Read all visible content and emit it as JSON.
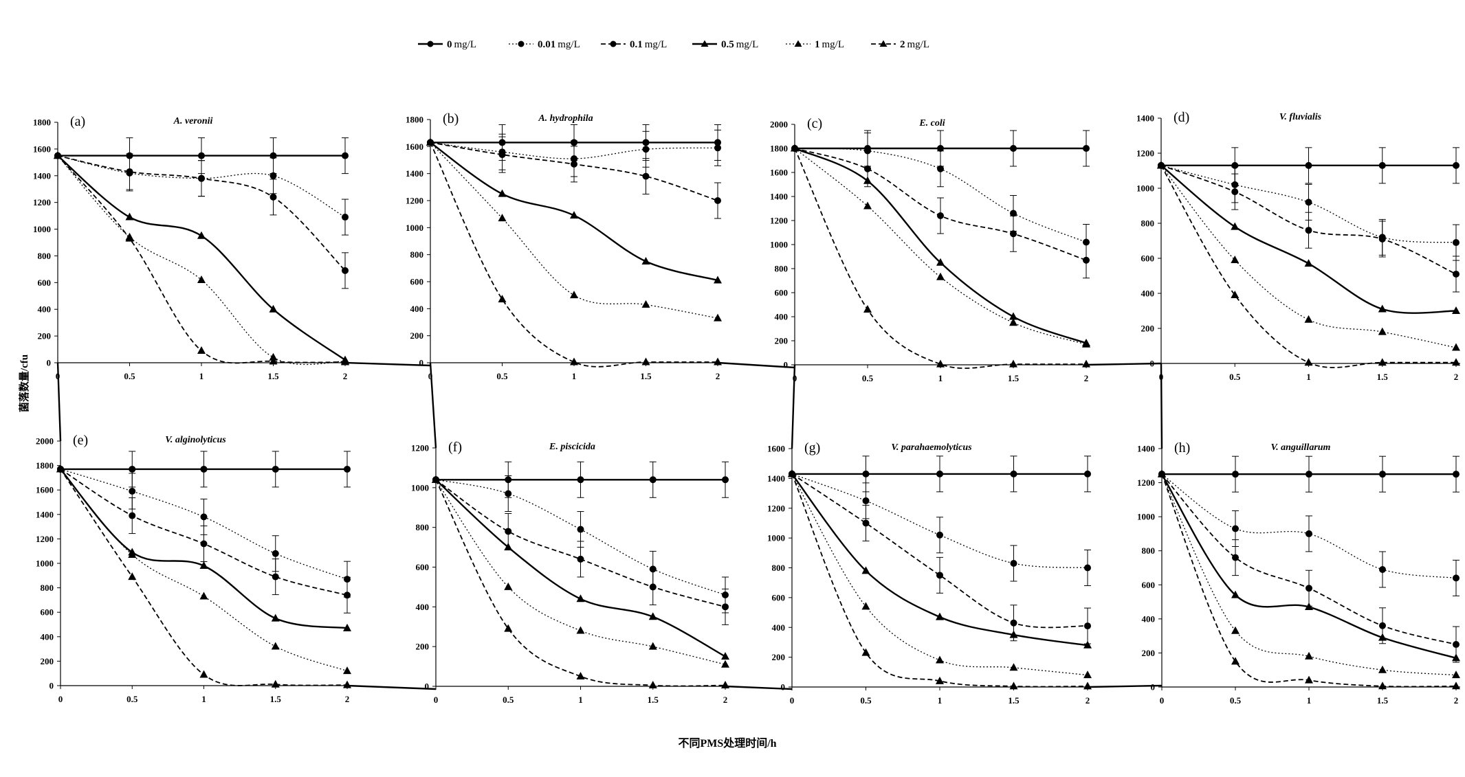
{
  "legend": {
    "entries": [
      {
        "value": "0",
        "unit": "mg/L",
        "marker": "circle",
        "dash": "solid"
      },
      {
        "value": "0.01",
        "unit": "mg/L",
        "marker": "circle",
        "dash": "dotted"
      },
      {
        "value": "0.1",
        "unit": "mg/L",
        "marker": "circle",
        "dash": "dashed"
      },
      {
        "value": "0.5",
        "unit": "mg/L",
        "marker": "triangle",
        "dash": "solid"
      },
      {
        "value": "1",
        "unit": "mg/L",
        "marker": "triangle",
        "dash": "dotted"
      },
      {
        "value": "2",
        "unit": "mg/L",
        "marker": "triangle",
        "dash": "dashed"
      }
    ]
  },
  "shared_ylabel": "菌落数量/cfu",
  "shared_xlabel": "不同PMS处理时间/h",
  "chart_data": [
    {
      "type": "line",
      "label": "(a)",
      "title": "A. veronii",
      "x": [
        0,
        0.5,
        1,
        1.5,
        2
      ],
      "x_ticks": [
        "0",
        "0.5",
        "1",
        "1.5",
        "2"
      ],
      "ylim": [
        0,
        1800
      ],
      "y_ticks": [
        0,
        200,
        400,
        600,
        800,
        1000,
        1200,
        1400,
        1600,
        1800
      ],
      "series": [
        {
          "values": [
            1550,
            1550,
            1550,
            1550,
            1550
          ],
          "error_bars": true
        },
        {
          "values": [
            1550,
            1420,
            1380,
            1400,
            1090
          ],
          "error_bars": true
        },
        {
          "values": [
            1550,
            1430,
            1380,
            1240,
            690
          ],
          "error_bars": true
        },
        {
          "values": [
            1550,
            1090,
            950,
            400,
            20
          ],
          "error_bars": false
        },
        {
          "values": [
            1550,
            940,
            620,
            40,
            10
          ],
          "error_bars": false
        },
        {
          "values": [
            1550,
            930,
            90,
            10,
            5
          ],
          "error_bars": false
        }
      ]
    },
    {
      "type": "line",
      "label": "(b)",
      "title": "A. hydrophila",
      "x": [
        0,
        0.5,
        1,
        1.5,
        2
      ],
      "x_ticks": [
        "0",
        "0.5",
        "1",
        "1.5",
        "2"
      ],
      "ylim": [
        0,
        1800
      ],
      "y_ticks": [
        0,
        200,
        400,
        600,
        800,
        1000,
        1200,
        1400,
        1600,
        1800
      ],
      "series": [
        {
          "values": [
            1630,
            1630,
            1630,
            1630,
            1630
          ],
          "error_bars": true
        },
        {
          "values": [
            1630,
            1560,
            1510,
            1580,
            1590
          ],
          "error_bars": true
        },
        {
          "values": [
            1630,
            1540,
            1470,
            1380,
            1200
          ],
          "error_bars": true
        },
        {
          "values": [
            1630,
            1250,
            1090,
            750,
            610
          ],
          "error_bars": false
        },
        {
          "values": [
            1630,
            1070,
            500,
            430,
            330
          ],
          "error_bars": false
        },
        {
          "values": [
            1630,
            470,
            5,
            5,
            5
          ],
          "error_bars": false
        }
      ]
    },
    {
      "type": "line",
      "label": "(c)",
      "title": "E. coli",
      "x": [
        0,
        0.5,
        1,
        1.5,
        2
      ],
      "x_ticks": [
        "0",
        "0.5",
        "1",
        "1.5",
        "2"
      ],
      "ylim": [
        0,
        2000
      ],
      "y_ticks": [
        0,
        200,
        400,
        600,
        800,
        1000,
        1200,
        1400,
        1600,
        1800,
        2000
      ],
      "series": [
        {
          "values": [
            1800,
            1800,
            1800,
            1800,
            1800
          ],
          "error_bars": true
        },
        {
          "values": [
            1800,
            1780,
            1630,
            1260,
            1020
          ],
          "error_bars": true
        },
        {
          "values": [
            1800,
            1630,
            1240,
            1090,
            870
          ],
          "error_bars": true
        },
        {
          "values": [
            1800,
            1530,
            850,
            400,
            180
          ],
          "error_bars": false
        },
        {
          "values": [
            1800,
            1320,
            730,
            350,
            170
          ],
          "error_bars": false
        },
        {
          "values": [
            1800,
            460,
            5,
            5,
            5
          ],
          "error_bars": false
        }
      ]
    },
    {
      "type": "line",
      "label": "(d)",
      "title": "V. fluvialis",
      "x": [
        0,
        0.5,
        1,
        1.5,
        2
      ],
      "x_ticks": [
        "0",
        "0.5",
        "1",
        "1.5",
        "2"
      ],
      "ylim": [
        0,
        1400
      ],
      "y_ticks": [
        0,
        200,
        400,
        600,
        800,
        1000,
        1200,
        1400
      ],
      "series": [
        {
          "values": [
            1130,
            1130,
            1130,
            1130,
            1130
          ],
          "error_bars": true
        },
        {
          "values": [
            1130,
            1020,
            920,
            720,
            690
          ],
          "error_bars": true
        },
        {
          "values": [
            1130,
            980,
            760,
            710,
            510
          ],
          "error_bars": true
        },
        {
          "values": [
            1130,
            780,
            570,
            310,
            300
          ],
          "error_bars": false
        },
        {
          "values": [
            1130,
            590,
            250,
            180,
            90
          ],
          "error_bars": false
        },
        {
          "values": [
            1130,
            390,
            5,
            5,
            5
          ],
          "error_bars": false
        }
      ]
    },
    {
      "type": "line",
      "label": "(e)",
      "title": "V. alginolyticus",
      "x": [
        0,
        0.5,
        1,
        1.5,
        2
      ],
      "x_ticks": [
        "0",
        "0.5",
        "1",
        "1.5",
        "2"
      ],
      "ylim": [
        0,
        2000
      ],
      "y_ticks": [
        0,
        200,
        400,
        600,
        800,
        1000,
        1200,
        1400,
        1600,
        1800,
        2000
      ],
      "series": [
        {
          "values": [
            1770,
            1770,
            1770,
            1770,
            1770
          ],
          "error_bars": true
        },
        {
          "values": [
            1770,
            1590,
            1380,
            1080,
            870
          ],
          "error_bars": true
        },
        {
          "values": [
            1770,
            1390,
            1160,
            890,
            740
          ],
          "error_bars": true
        },
        {
          "values": [
            1770,
            1090,
            980,
            550,
            470
          ],
          "error_bars": false
        },
        {
          "values": [
            1770,
            1070,
            730,
            320,
            120
          ],
          "error_bars": false
        },
        {
          "values": [
            1770,
            890,
            90,
            10,
            5
          ],
          "error_bars": false
        }
      ]
    },
    {
      "type": "line",
      "label": "(f)",
      "title": "E. piscicida",
      "x": [
        0,
        0.5,
        1,
        1.5,
        2
      ],
      "x_ticks": [
        "0",
        "0.5",
        "1",
        "1.5",
        "2"
      ],
      "ylim": [
        0,
        1200
      ],
      "y_ticks": [
        0,
        200,
        400,
        600,
        800,
        1000,
        1200
      ],
      "series": [
        {
          "values": [
            1040,
            1040,
            1040,
            1040,
            1040
          ],
          "error_bars": true
        },
        {
          "values": [
            1040,
            970,
            790,
            590,
            460
          ],
          "error_bars": true
        },
        {
          "values": [
            1040,
            780,
            640,
            500,
            400
          ],
          "error_bars": true
        },
        {
          "values": [
            1040,
            700,
            440,
            350,
            150
          ],
          "error_bars": false
        },
        {
          "values": [
            1040,
            500,
            280,
            200,
            110
          ],
          "error_bars": false
        },
        {
          "values": [
            1040,
            290,
            50,
            5,
            5
          ],
          "error_bars": false
        }
      ]
    },
    {
      "type": "line",
      "label": "(g)",
      "title": "V. parahaemolyticus",
      "x": [
        0,
        0.5,
        1,
        1.5,
        2
      ],
      "x_ticks": [
        "0",
        "0.5",
        "1",
        "1.5",
        "2"
      ],
      "ylim": [
        0,
        1600
      ],
      "y_ticks": [
        0,
        200,
        400,
        600,
        800,
        1000,
        1200,
        1400,
        1600
      ],
      "series": [
        {
          "values": [
            1430,
            1430,
            1430,
            1430,
            1430
          ],
          "error_bars": true
        },
        {
          "values": [
            1430,
            1250,
            1020,
            830,
            800
          ],
          "error_bars": true
        },
        {
          "values": [
            1430,
            1100,
            750,
            430,
            410
          ],
          "error_bars": true
        },
        {
          "values": [
            1430,
            780,
            470,
            350,
            280
          ],
          "error_bars": false
        },
        {
          "values": [
            1430,
            540,
            180,
            130,
            80
          ],
          "error_bars": false
        },
        {
          "values": [
            1430,
            230,
            40,
            5,
            5
          ],
          "error_bars": false
        }
      ]
    },
    {
      "type": "line",
      "label": "(h)",
      "title": "V. anguillarum",
      "x": [
        0,
        0.5,
        1,
        1.5,
        2
      ],
      "x_ticks": [
        "0",
        "0.5",
        "1",
        "1.5",
        "2"
      ],
      "ylim": [
        0,
        1400
      ],
      "y_ticks": [
        0,
        200,
        400,
        600,
        800,
        1000,
        1200,
        1400
      ],
      "series": [
        {
          "values": [
            1250,
            1250,
            1250,
            1250,
            1250
          ],
          "error_bars": true
        },
        {
          "values": [
            1250,
            930,
            900,
            690,
            640
          ],
          "error_bars": true
        },
        {
          "values": [
            1250,
            760,
            580,
            360,
            250
          ],
          "error_bars": true
        },
        {
          "values": [
            1250,
            540,
            470,
            290,
            170
          ],
          "error_bars": false
        },
        {
          "values": [
            1250,
            330,
            180,
            100,
            70
          ],
          "error_bars": false
        },
        {
          "values": [
            1250,
            150,
            40,
            5,
            5
          ],
          "error_bars": false
        }
      ]
    }
  ]
}
